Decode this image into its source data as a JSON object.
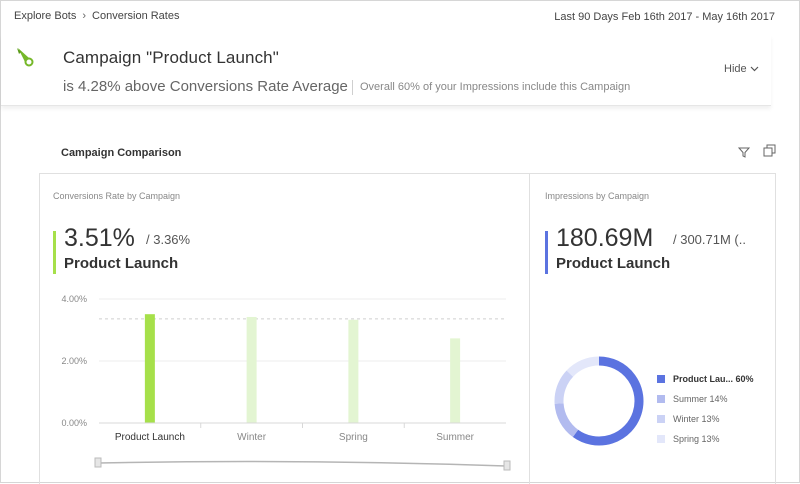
{
  "breadcrumb": {
    "root": "Explore Bots",
    "current": "Conversion Rates"
  },
  "date_range": "Last 90 Days Feb 16th 2017 - May 16th 2017",
  "header": {
    "title": "Campaign \"Product Launch\"",
    "subtitle": "is 4.28% above Conversions Rate Average",
    "note": "Overall 60% of your Impressions include this Campaign",
    "hide_label": "Hide",
    "icon": "rocket-icon"
  },
  "section": {
    "title": "Campaign Comparison",
    "filter_icon": "filter-icon",
    "expand_icon": "expand-icon"
  },
  "conversions_panel": {
    "label": "Conversions Rate by Campaign",
    "kpi_value": "3.51%",
    "kpi_compare": "/ 3.36%",
    "kpi_name": "Product Launch",
    "accent": "#a6e04a"
  },
  "impressions_panel": {
    "label": "Impressions by Campaign",
    "kpi_value": "180.69M",
    "kpi_compare": "/ 300.71M (..",
    "kpi_name": "Product Launch",
    "accent": "#5b73e0"
  },
  "chart_data": [
    {
      "type": "bar",
      "categories": [
        "Product Launch",
        "Winter",
        "Spring",
        "Summer"
      ],
      "values": [
        3.51,
        3.42,
        3.33,
        2.73
      ],
      "average": 3.36,
      "ytick_labels": [
        "4.00%",
        "2.00%",
        "0.00%"
      ],
      "yticks": [
        4,
        2,
        0
      ],
      "ylim": [
        0,
        4
      ],
      "highlight": "Product Launch",
      "colors": {
        "highlight": "#a6e04a",
        "normal": "#e3f5d2"
      }
    },
    {
      "type": "pie",
      "categories": [
        "Product Lau...",
        "Summer",
        "Winter",
        "Spring"
      ],
      "percent_labels": [
        "60%",
        "14%",
        "13%",
        "13%"
      ],
      "values": [
        60,
        14,
        13,
        13
      ],
      "colors": [
        "#5b73e0",
        "#b2bbef",
        "#cbd2f5",
        "#e3e7fa"
      ]
    }
  ]
}
